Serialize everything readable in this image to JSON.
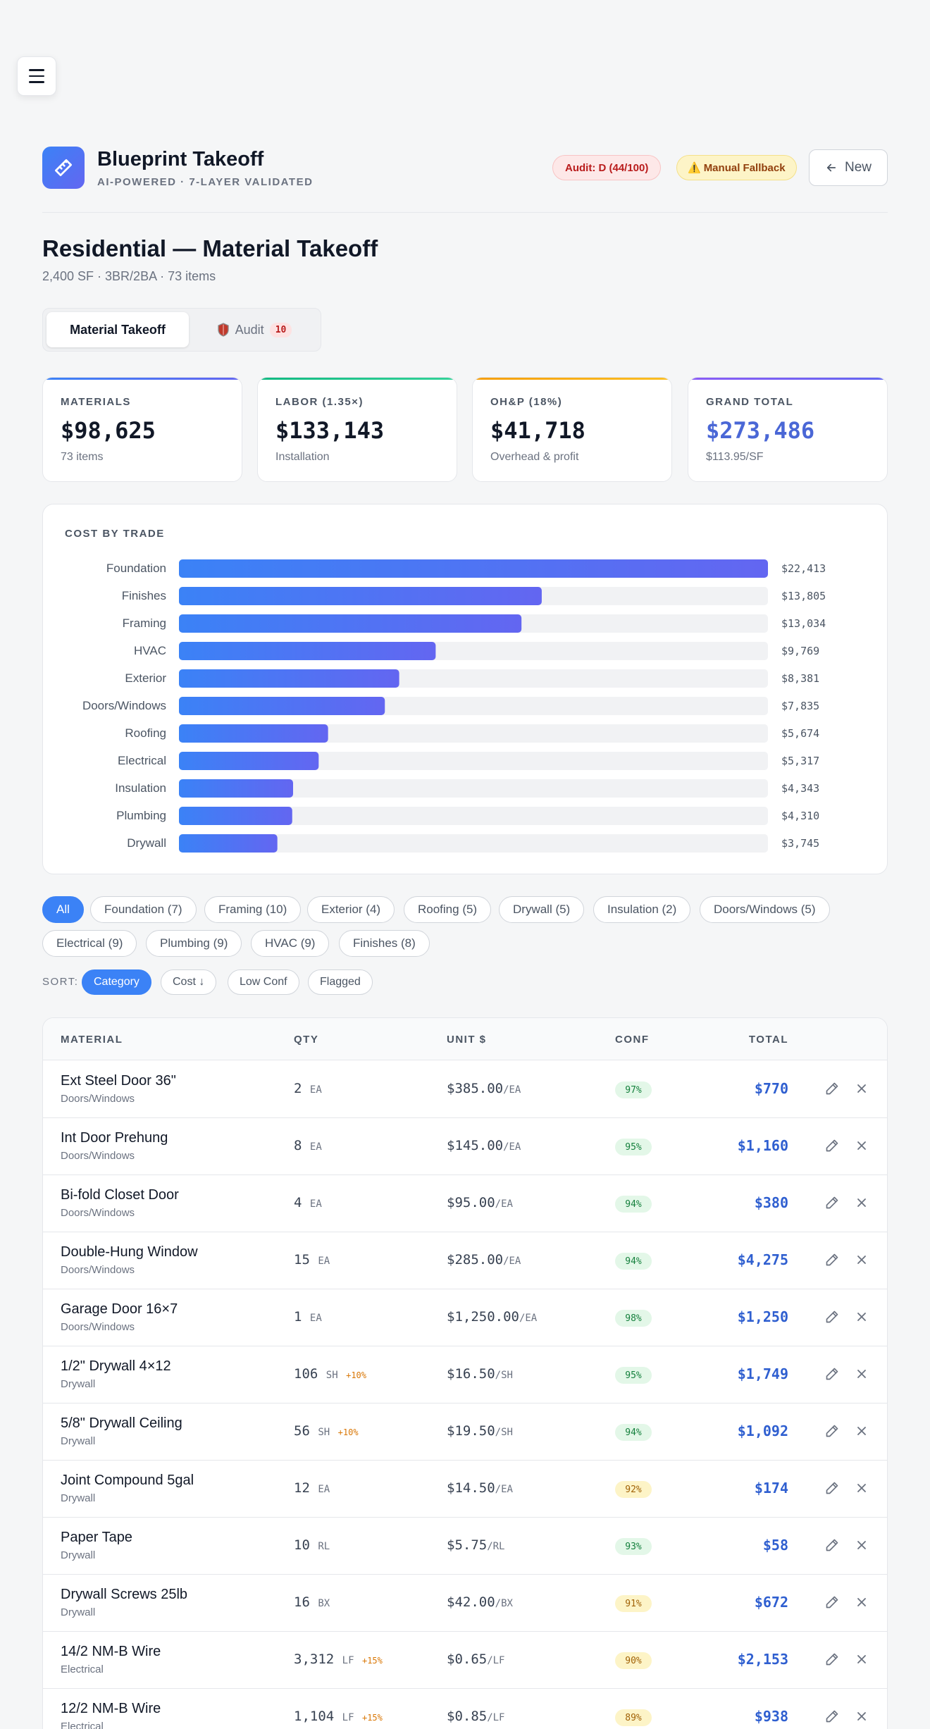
{
  "header": {
    "title": "Blueprint Takeoff",
    "subtitle": "AI-POWERED · 7-LAYER VALIDATED",
    "audit_badge": "Audit: D (44/100)",
    "manual_badge": "Manual Fallback",
    "manual_icon": "warning-icon",
    "new_button": "New"
  },
  "page": {
    "title": "Residential — Material Takeoff",
    "subtitle": "2,400 SF · 3BR/2BA · 73 items"
  },
  "tabs": {
    "material": "Material Takeoff",
    "audit": "Audit",
    "audit_count": "10"
  },
  "stats": [
    {
      "label": "MATERIALS",
      "value": "$98,625",
      "desc": "73 items",
      "accent": "#3b82f6"
    },
    {
      "label": "LABOR (1.35×)",
      "value": "$133,143",
      "desc": "Installation",
      "accent": "#10b981"
    },
    {
      "label": "OH&P (18%)",
      "value": "$41,718",
      "desc": "Overhead & profit",
      "accent": "#f59e0b"
    },
    {
      "label": "GRAND TOTAL",
      "value": "$273,486",
      "desc": "$113.95/SF",
      "accent": "#8b5cf6"
    }
  ],
  "chart_data": {
    "type": "bar",
    "title": "COST BY TRADE",
    "orientation": "horizontal",
    "categories": [
      "Foundation",
      "Finishes",
      "Framing",
      "HVAC",
      "Exterior",
      "Doors/Windows",
      "Roofing",
      "Electrical",
      "Insulation",
      "Plumbing",
      "Drywall"
    ],
    "values": [
      22413,
      13805,
      13034,
      9769,
      8381,
      7835,
      5674,
      5317,
      4343,
      4310,
      3745
    ],
    "value_labels": [
      "$22,413",
      "$13,805",
      "$13,034",
      "$9,769",
      "$8,381",
      "$7,835",
      "$5,674",
      "$5,317",
      "$4,343",
      "$4,310",
      "$3,745"
    ],
    "xlim": [
      0,
      22413
    ],
    "grid": false
  },
  "filters": [
    "All",
    "Foundation (7)",
    "Framing (10)",
    "Exterior (4)",
    "Roofing (5)",
    "Drywall (5)",
    "Insulation (2)",
    "Doors/Windows (5)",
    "Electrical (9)",
    "Plumbing (9)",
    "HVAC (9)",
    "Finishes (8)"
  ],
  "sort": {
    "label": "SORT:",
    "options": [
      "Category",
      "Cost ↓",
      "Low Conf",
      "Flagged"
    ]
  },
  "table": {
    "columns": [
      "MATERIAL",
      "QTY",
      "UNIT $",
      "CONF",
      "TOTAL"
    ],
    "rows": [
      {
        "name": "Ext Steel Door 36\"",
        "category": "Doors/Windows",
        "qty": "2",
        "unit": "EA",
        "waste": "",
        "price": "$385.00",
        "price_unit": "/EA",
        "conf": "97%",
        "total": "$770"
      },
      {
        "name": "Int Door Prehung",
        "category": "Doors/Windows",
        "qty": "8",
        "unit": "EA",
        "waste": "",
        "price": "$145.00",
        "price_unit": "/EA",
        "conf": "95%",
        "total": "$1,160"
      },
      {
        "name": "Bi-fold Closet Door",
        "category": "Doors/Windows",
        "qty": "4",
        "unit": "EA",
        "waste": "",
        "price": "$95.00",
        "price_unit": "/EA",
        "conf": "94%",
        "total": "$380"
      },
      {
        "name": "Double-Hung Window",
        "category": "Doors/Windows",
        "qty": "15",
        "unit": "EA",
        "waste": "",
        "price": "$285.00",
        "price_unit": "/EA",
        "conf": "94%",
        "total": "$4,275"
      },
      {
        "name": "Garage Door 16×7",
        "category": "Doors/Windows",
        "qty": "1",
        "unit": "EA",
        "waste": "",
        "price": "$1,250.00",
        "price_unit": "/EA",
        "conf": "98%",
        "total": "$1,250"
      },
      {
        "name": "1/2\" Drywall 4×12",
        "category": "Drywall",
        "qty": "106",
        "unit": "SH",
        "waste": "+10%",
        "price": "$16.50",
        "price_unit": "/SH",
        "conf": "95%",
        "total": "$1,749"
      },
      {
        "name": "5/8\" Drywall Ceiling",
        "category": "Drywall",
        "qty": "56",
        "unit": "SH",
        "waste": "+10%",
        "price": "$19.50",
        "price_unit": "/SH",
        "conf": "94%",
        "total": "$1,092"
      },
      {
        "name": "Joint Compound 5gal",
        "category": "Drywall",
        "qty": "12",
        "unit": "EA",
        "waste": "",
        "price": "$14.50",
        "price_unit": "/EA",
        "conf": "92%",
        "total": "$174"
      },
      {
        "name": "Paper Tape",
        "category": "Drywall",
        "qty": "10",
        "unit": "RL",
        "waste": "",
        "price": "$5.75",
        "price_unit": "/RL",
        "conf": "93%",
        "total": "$58"
      },
      {
        "name": "Drywall Screws 25lb",
        "category": "Drywall",
        "qty": "16",
        "unit": "BX",
        "waste": "",
        "price": "$42.00",
        "price_unit": "/BX",
        "conf": "91%",
        "total": "$672"
      },
      {
        "name": "14/2 NM-B Wire",
        "category": "Electrical",
        "qty": "3,312",
        "unit": "LF",
        "waste": "+15%",
        "price": "$0.65",
        "price_unit": "/LF",
        "conf": "90%",
        "total": "$2,153"
      },
      {
        "name": "12/2 NM-B Wire",
        "category": "Electrical",
        "qty": "1,104",
        "unit": "LF",
        "waste": "+15%",
        "price": "$0.85",
        "price_unit": "/LF",
        "conf": "89%",
        "total": "$938"
      }
    ]
  },
  "colors": {
    "accent": "#3b82f6",
    "bar_gradient_start": "#3b82f6",
    "bar_gradient_end": "#6366f1",
    "total_text": "#2f5fd0",
    "conf_high_bg": "#e3f7e8",
    "conf_mid_bg": "#fdf4c7"
  }
}
